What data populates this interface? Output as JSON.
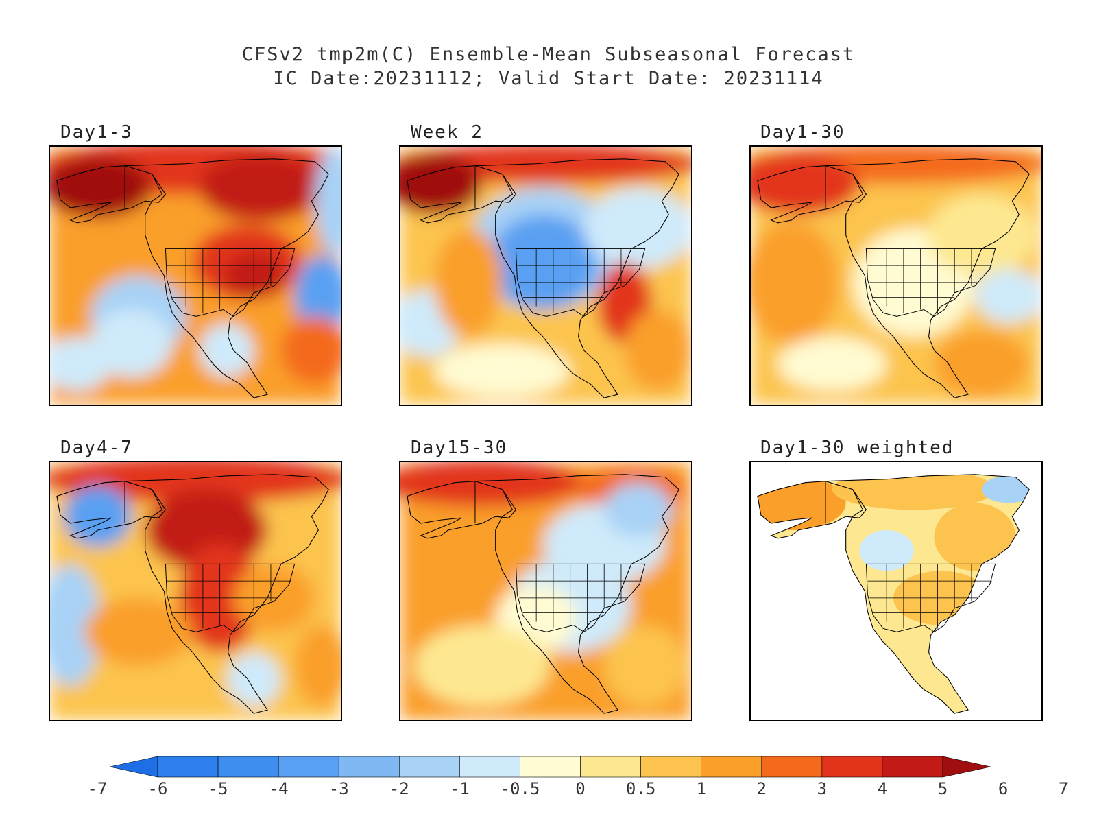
{
  "title": {
    "line1": "CFSv2 tmp2m(C) Ensemble-Mean Subseasonal Forecast",
    "line2": "IC Date:20231112; Valid Start Date: 20231114"
  },
  "panels": [
    {
      "label": "Day1-3",
      "pattern": "warm-strong"
    },
    {
      "label": "Week 2",
      "pattern": "cold-west"
    },
    {
      "label": "Day1-30",
      "pattern": "mild"
    },
    {
      "label": "Day4-7",
      "pattern": "warm-west"
    },
    {
      "label": "Day15-30",
      "pattern": "cool-east"
    },
    {
      "label": "Day1-30 weighted",
      "pattern": "weighted"
    }
  ],
  "colorbar": {
    "bins": [
      {
        "color": "#1e6fe6"
      },
      {
        "color": "#2d7fee"
      },
      {
        "color": "#3e8ef0"
      },
      {
        "color": "#5aa0f2"
      },
      {
        "color": "#80b8f4"
      },
      {
        "color": "#a8d2f6"
      },
      {
        "color": "#cfeafa"
      },
      {
        "color": "#fffbd2"
      },
      {
        "color": "#fde891"
      },
      {
        "color": "#fcc44e"
      },
      {
        "color": "#fa9f2a"
      },
      {
        "color": "#f46a1c"
      },
      {
        "color": "#e2341a"
      },
      {
        "color": "#c21a16"
      },
      {
        "color": "#a00f0f"
      }
    ],
    "ticks": [
      "-7",
      "-6",
      "-5",
      "-4",
      "-3",
      "-2",
      "-1",
      "-0.5",
      "0",
      "0.5",
      "1",
      "2",
      "3",
      "4",
      "5",
      "6",
      "7"
    ]
  }
}
